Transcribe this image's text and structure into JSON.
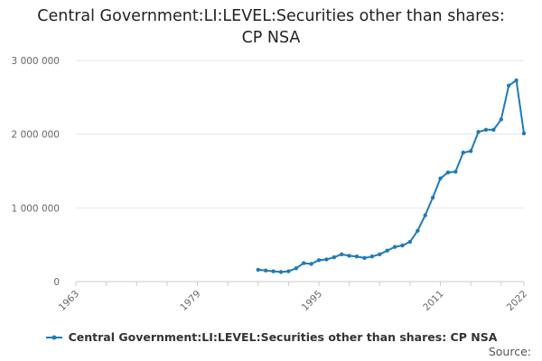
{
  "title_lines": [
    "Central Government:LI:LEVEL:Securities other than shares:",
    "CP NSA"
  ],
  "legend_label": "Central Government:LI:LEVEL:Securities other than shares: CP NSA",
  "source_label": "Source:",
  "colors": {
    "series": "#1f7ab8",
    "grid": "#e6e6e6",
    "axis": "#cccccc",
    "text": "#666666"
  },
  "chart_data": {
    "type": "line",
    "title": "Central Government:LI:LEVEL:Securities other than shares: CP NSA",
    "xlabel": "",
    "ylabel": "",
    "xlim": [
      1963,
      2022
    ],
    "ylim": [
      0,
      3000000
    ],
    "x_ticks": [
      1963,
      1979,
      1995,
      2011,
      2022
    ],
    "y_ticks": [
      {
        "value": 0,
        "label": "0"
      },
      {
        "value": 1000000,
        "label": "1 000 000"
      },
      {
        "value": 2000000,
        "label": "2 000 000"
      },
      {
        "value": 3000000,
        "label": "3 000 000"
      }
    ],
    "series": [
      {
        "name": "Central Government:LI:LEVEL:Securities other than shares: CP NSA",
        "x": [
          1987,
          1988,
          1989,
          1990,
          1991,
          1992,
          1993,
          1994,
          1995,
          1996,
          1997,
          1998,
          1999,
          2000,
          2001,
          2002,
          2003,
          2004,
          2005,
          2006,
          2007,
          2008,
          2009,
          2010,
          2011,
          2012,
          2013,
          2014,
          2015,
          2016,
          2017,
          2018,
          2019,
          2020,
          2021,
          2022
        ],
        "values": [
          160000,
          150000,
          140000,
          130000,
          140000,
          180000,
          250000,
          240000,
          290000,
          300000,
          330000,
          370000,
          350000,
          340000,
          320000,
          340000,
          370000,
          420000,
          470000,
          490000,
          540000,
          690000,
          900000,
          1140000,
          1400000,
          1480000,
          1490000,
          1750000,
          1770000,
          2030000,
          2060000,
          2060000,
          2200000,
          2660000,
          2730000,
          2010000
        ]
      }
    ]
  }
}
